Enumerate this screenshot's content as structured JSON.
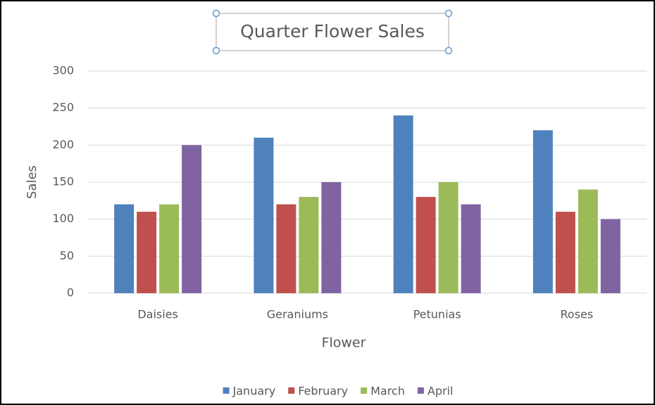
{
  "chart_data": {
    "type": "bar",
    "title": "Quarter Flower Sales",
    "x_label": "Flower",
    "y_label": "Sales",
    "categories": [
      "Daisies",
      "Geraniums",
      "Petunias",
      "Roses"
    ],
    "series": [
      {
        "name": "January",
        "color": "#4f81bd",
        "values": [
          120,
          210,
          240,
          220
        ]
      },
      {
        "name": "February",
        "color": "#c0504d",
        "values": [
          110,
          120,
          130,
          110
        ]
      },
      {
        "name": "March",
        "color": "#9bbb59",
        "values": [
          120,
          130,
          150,
          140
        ]
      },
      {
        "name": "April",
        "color": "#8064a2",
        "values": [
          200,
          150,
          120,
          100
        ]
      }
    ],
    "ylim": [
      0,
      300
    ],
    "yticks": [
      0,
      50,
      100,
      150,
      200,
      250,
      300
    ],
    "grid": true,
    "legend": "bottom"
  }
}
